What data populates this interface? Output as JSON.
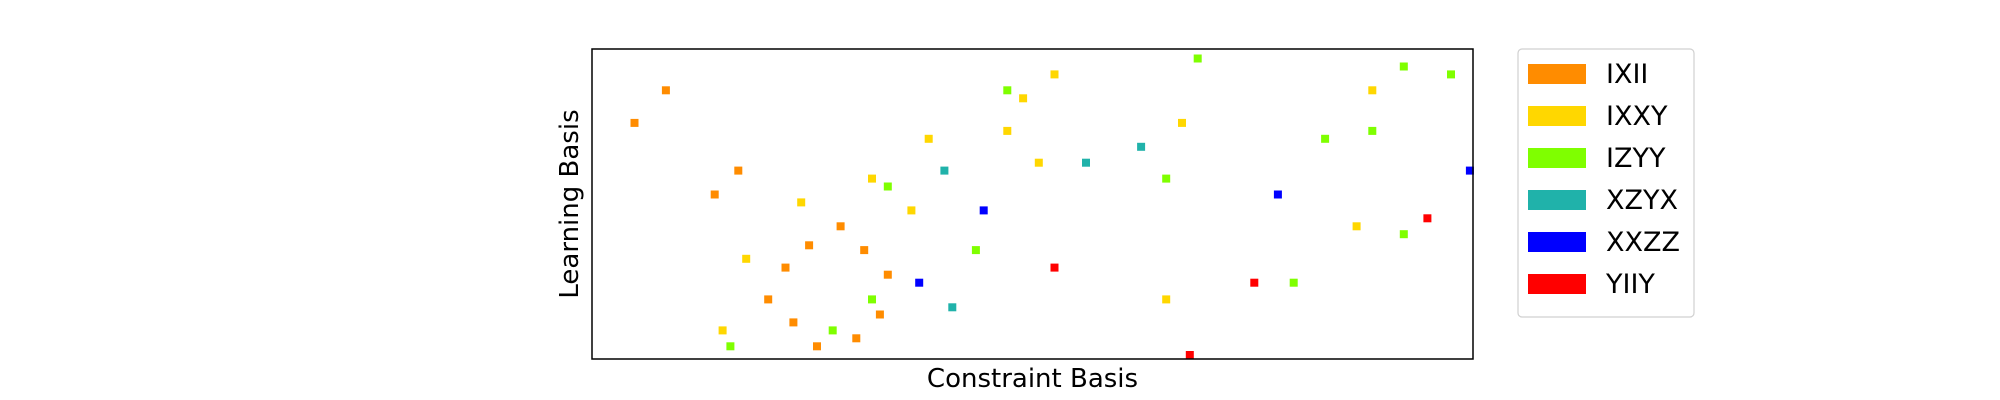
{
  "chart_data": {
    "type": "scatter",
    "xlabel": "Constraint Basis",
    "ylabel": "Learning Basis",
    "xlim": [
      0,
      56
    ],
    "ylim": [
      0,
      39
    ],
    "grid": false,
    "ticks": false,
    "legend_position": "outside-right-top",
    "series": [
      {
        "name": "IXII",
        "color": "#ff8c00",
        "points": [
          {
            "x": 2.7,
            "y": 29.7
          },
          {
            "x": 4.7,
            "y": 33.8
          },
          {
            "x": 7.8,
            "y": 20.7
          },
          {
            "x": 9.3,
            "y": 23.7
          },
          {
            "x": 11.2,
            "y": 7.5
          },
          {
            "x": 12.3,
            "y": 11.5
          },
          {
            "x": 12.8,
            "y": 4.6
          },
          {
            "x": 13.8,
            "y": 14.3
          },
          {
            "x": 14.3,
            "y": 1.6
          },
          {
            "x": 15.8,
            "y": 16.7
          },
          {
            "x": 16.8,
            "y": 2.6
          },
          {
            "x": 17.3,
            "y": 13.7
          },
          {
            "x": 18.3,
            "y": 5.6
          },
          {
            "x": 18.8,
            "y": 10.6
          }
        ]
      },
      {
        "name": "IXXY",
        "color": "#ffd700",
        "points": [
          {
            "x": 8.3,
            "y": 3.6
          },
          {
            "x": 9.8,
            "y": 12.6
          },
          {
            "x": 13.3,
            "y": 19.7
          },
          {
            "x": 17.8,
            "y": 22.7
          },
          {
            "x": 20.3,
            "y": 18.7
          },
          {
            "x": 21.4,
            "y": 27.7
          },
          {
            "x": 26.4,
            "y": 28.7
          },
          {
            "x": 27.4,
            "y": 32.8
          },
          {
            "x": 28.4,
            "y": 24.7
          },
          {
            "x": 29.4,
            "y": 35.8
          },
          {
            "x": 36.5,
            "y": 7.5
          },
          {
            "x": 37.5,
            "y": 29.7
          },
          {
            "x": 48.6,
            "y": 16.7
          },
          {
            "x": 49.6,
            "y": 33.8
          }
        ]
      },
      {
        "name": "IZYY",
        "color": "#7fff00",
        "points": [
          {
            "x": 8.8,
            "y": 1.6
          },
          {
            "x": 15.3,
            "y": 3.6
          },
          {
            "x": 17.8,
            "y": 7.5
          },
          {
            "x": 18.8,
            "y": 21.7
          },
          {
            "x": 24.4,
            "y": 13.7
          },
          {
            "x": 26.4,
            "y": 33.8
          },
          {
            "x": 36.5,
            "y": 22.7
          },
          {
            "x": 38.5,
            "y": 37.8
          },
          {
            "x": 44.6,
            "y": 9.6
          },
          {
            "x": 46.6,
            "y": 27.7
          },
          {
            "x": 49.6,
            "y": 28.7
          },
          {
            "x": 51.6,
            "y": 15.7
          },
          {
            "x": 51.6,
            "y": 36.8
          },
          {
            "x": 54.6,
            "y": 35.8
          }
        ]
      },
      {
        "name": "XZYX",
        "color": "#20b2aa",
        "points": [
          {
            "x": 22.4,
            "y": 23.7
          },
          {
            "x": 22.9,
            "y": 6.5
          },
          {
            "x": 31.4,
            "y": 24.7
          },
          {
            "x": 34.9,
            "y": 26.7
          }
        ]
      },
      {
        "name": "XXZZ",
        "color": "#0000ff",
        "points": [
          {
            "x": 20.8,
            "y": 9.6
          },
          {
            "x": 24.9,
            "y": 18.7
          },
          {
            "x": 43.6,
            "y": 20.7
          },
          {
            "x": 55.8,
            "y": 23.7
          }
        ]
      },
      {
        "name": "YIIY",
        "color": "#ff0000",
        "points": [
          {
            "x": 29.4,
            "y": 11.5
          },
          {
            "x": 38.0,
            "y": 0.5
          },
          {
            "x": 42.1,
            "y": 9.6
          },
          {
            "x": 53.1,
            "y": 17.7
          }
        ]
      }
    ]
  }
}
